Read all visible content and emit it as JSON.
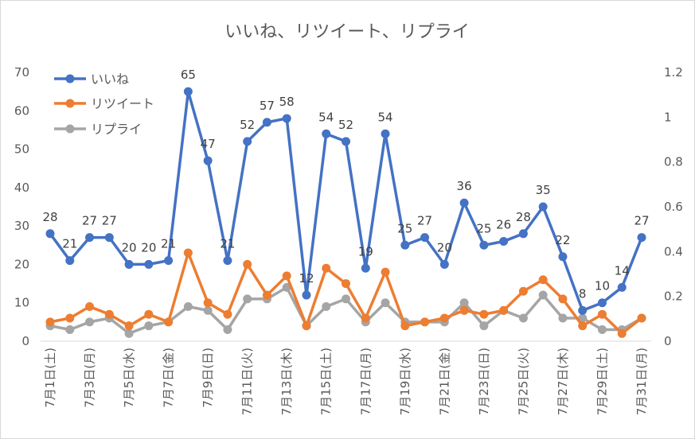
{
  "chart_data": {
    "type": "line",
    "title": "いいね、リツイート、リプライ",
    "categories": [
      "7月1日(土)",
      "7月2日(日)",
      "7月3日(月)",
      "7月4日(火)",
      "7月5日(水)",
      "7月6日(木)",
      "7月7日(金)",
      "7月8日(土)",
      "7月9日(日)",
      "7月10日(月)",
      "7月11日(火)",
      "7月12日(水)",
      "7月13日(木)",
      "7月14日(金)",
      "7月15日(土)",
      "7月16日(日)",
      "7月17日(月)",
      "7月18日(火)",
      "7月19日(水)",
      "7月20日(木)",
      "7月21日(金)",
      "7月22日(土)",
      "7月23日(日)",
      "7月24日(月)",
      "7月25日(火)",
      "7月26日(水)",
      "7月27日(木)",
      "7月28日(金)",
      "7月29日(土)",
      "7月30日(日)",
      "7月31日(月)"
    ],
    "shown_tick_labels": [
      "7月1日(土)",
      "7月3日(月)",
      "7月5日(水)",
      "7月7日(金)",
      "7月9日(日)",
      "7月11日(火)",
      "7月13日(木)",
      "7月15日(土)",
      "7月17日(月)",
      "7月19日(水)",
      "7月21日(金)",
      "7月23日(日)",
      "7月25日(火)",
      "7月27日(木)",
      "7月29日(土)",
      "7月31日(月)"
    ],
    "series": [
      {
        "name": "いいね",
        "color": "#4472C4",
        "values": [
          28,
          21,
          27,
          27,
          20,
          20,
          21,
          65,
          47,
          21,
          52,
          57,
          58,
          12,
          54,
          52,
          19,
          54,
          25,
          27,
          20,
          36,
          25,
          26,
          28,
          35,
          22,
          8,
          10,
          14,
          27
        ],
        "data_labels": true
      },
      {
        "name": "リツイート",
        "color": "#ED7D31",
        "values": [
          5,
          6,
          9,
          7,
          4,
          7,
          5,
          23,
          10,
          7,
          20,
          12,
          17,
          4,
          19,
          15,
          6,
          18,
          4,
          5,
          6,
          8,
          7,
          8,
          13,
          16,
          11,
          4,
          7,
          2,
          6
        ],
        "data_labels": false
      },
      {
        "name": "リプライ",
        "color": "#A5A5A5",
        "values": [
          4,
          3,
          5,
          6,
          2,
          4,
          5,
          9,
          8,
          3,
          11,
          11,
          14,
          4,
          9,
          11,
          5,
          10,
          5,
          5,
          5,
          10,
          4,
          8,
          6,
          12,
          6,
          6,
          3,
          3,
          6
        ],
        "data_labels": false
      }
    ],
    "y_left": {
      "ylim": [
        0,
        70
      ],
      "ticks": [
        "0",
        "10",
        "20",
        "30",
        "40",
        "50",
        "60",
        "70"
      ]
    },
    "y_right": {
      "ylim": [
        0,
        1.2
      ],
      "ticks": [
        "0",
        "0.2",
        "0.4",
        "0.6",
        "0.8",
        "1",
        "1.2"
      ]
    },
    "grid": false,
    "legend_position": "top-left"
  }
}
